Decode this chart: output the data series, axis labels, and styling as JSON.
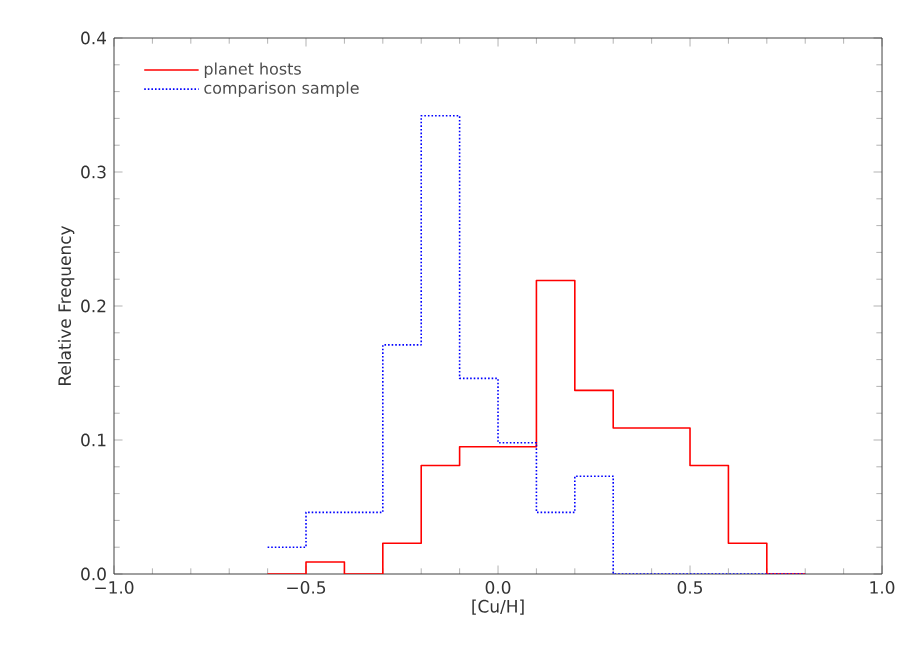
{
  "chart_data": {
    "type": "histogram",
    "xlabel": "[Cu/H]",
    "ylabel": "Relative Frequency",
    "bins": [
      -0.6,
      -0.5,
      -0.4,
      -0.3,
      -0.2,
      -0.1,
      0.0,
      0.1,
      0.2,
      0.3,
      0.4,
      0.5,
      0.6,
      0.7,
      0.8
    ],
    "series": [
      {
        "name": "planet hosts",
        "color": "#ff0000",
        "line_style": "solid",
        "values": [
          0,
          0.009,
          0,
          0.023,
          0.081,
          0.095,
          0.095,
          0.219,
          0.137,
          0.109,
          0.109,
          0.081,
          0.023,
          0
        ]
      },
      {
        "name": "comparison sample",
        "color": "#0000ff",
        "line_style": "dotted",
        "values": [
          0.02,
          0.046,
          0.046,
          0.171,
          0.342,
          0.146,
          0.098,
          0.046,
          0.073,
          0,
          0,
          0,
          0,
          0
        ]
      }
    ],
    "xlim": [
      -1.0,
      1.0
    ],
    "xticks": [
      {
        "value": -1.0,
        "label": "−1.0"
      },
      {
        "value": -0.5,
        "label": "−0.5"
      },
      {
        "value": 0.0,
        "label": "0.0"
      },
      {
        "value": 0.5,
        "label": "0.5"
      },
      {
        "value": 1.0,
        "label": "1.0"
      }
    ],
    "ylim": [
      0.0,
      0.4
    ],
    "yticks": [
      {
        "value": 0.0,
        "label": "0.0"
      },
      {
        "value": 0.1,
        "label": "0.1"
      },
      {
        "value": 0.2,
        "label": "0.2"
      },
      {
        "value": 0.3,
        "label": "0.3"
      },
      {
        "value": 0.4,
        "label": "0.4"
      }
    ],
    "grid": false,
    "legend": "top left"
  }
}
